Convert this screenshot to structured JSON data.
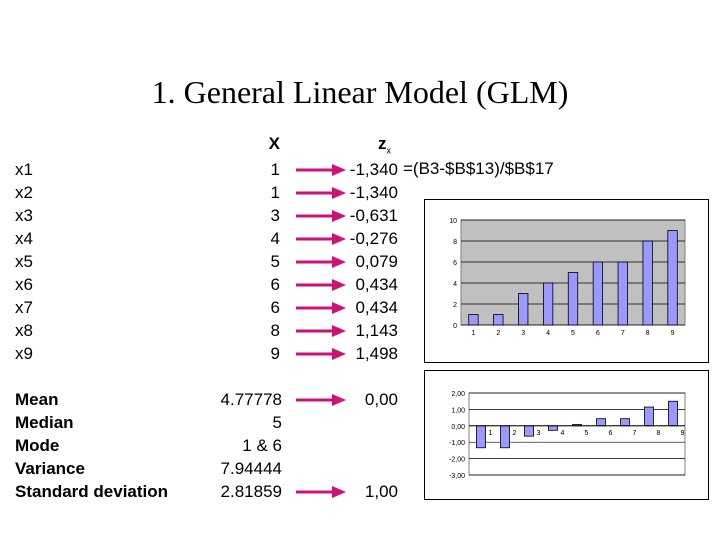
{
  "slide": {
    "title": "1. General Linear Model (GLM)",
    "col_x_header": "X",
    "col_z_header": "z",
    "col_z_sub": "x",
    "formula": "=(B3-$B$13)/$B$17",
    "arrow_color": "#cc1277",
    "rows": [
      {
        "label": "x1",
        "x": "1",
        "z": "-1,340"
      },
      {
        "label": "x2",
        "x": "1",
        "z": "-1,340"
      },
      {
        "label": "x3",
        "x": "3",
        "z": "-0,631"
      },
      {
        "label": "x4",
        "x": "4",
        "z": "-0,276"
      },
      {
        "label": "x5",
        "x": "5",
        "z": "0,079"
      },
      {
        "label": "x6",
        "x": "6",
        "z": "0,434"
      },
      {
        "label": "x7",
        "x": "6",
        "z": "0,434"
      },
      {
        "label": "x8",
        "x": "8",
        "z": "1,143"
      },
      {
        "label": "x9",
        "x": "9",
        "z": "1,498"
      }
    ],
    "stats": [
      {
        "label": "Mean",
        "value": "4.77778",
        "z": "0,00"
      },
      {
        "label": "Median",
        "value": "5",
        "z": ""
      },
      {
        "label": "Mode",
        "value": "1 & 6",
        "z": ""
      },
      {
        "label": "Variance",
        "value": "7.94444",
        "z": ""
      },
      {
        "label": "Standard deviation",
        "value": "2.81859",
        "z": "1,00"
      }
    ]
  },
  "chart_data": [
    {
      "type": "bar",
      "categories": [
        "1",
        "2",
        "3",
        "4",
        "5",
        "6",
        "7",
        "8",
        "9"
      ],
      "values": [
        1,
        1,
        3,
        4,
        5,
        6,
        6,
        8,
        9
      ],
      "ylim": [
        0,
        10
      ],
      "yticks": [
        "0",
        "2",
        "4",
        "6",
        "8",
        "10"
      ],
      "grid": true,
      "plot_color": "#c0c0c0",
      "bar_color": "#9999ff"
    },
    {
      "type": "bar",
      "categories": [
        "1",
        "2",
        "3",
        "4",
        "5",
        "6",
        "7",
        "8",
        "9"
      ],
      "values": [
        -1.34,
        -1.34,
        -0.631,
        -0.276,
        0.079,
        0.434,
        0.434,
        1.143,
        1.498
      ],
      "ylim": [
        -3,
        2
      ],
      "yticks": [
        "-3,00",
        "-2,00",
        "-1,00",
        "0,00",
        "1,00",
        "2,00"
      ],
      "grid": true,
      "plot_color": "#ffffff",
      "bar_color": "#9999ff"
    }
  ]
}
